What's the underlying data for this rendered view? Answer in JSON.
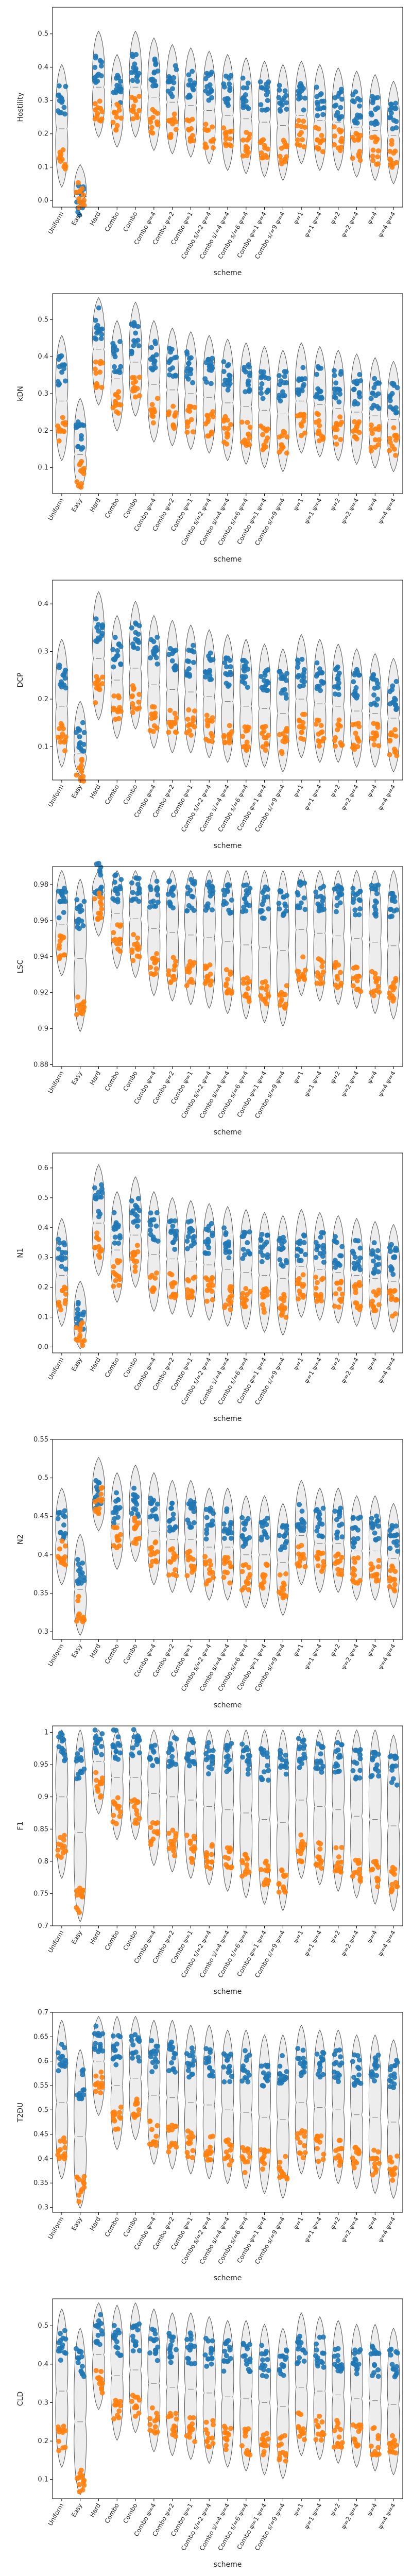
{
  "chart_data": {
    "type": "violin-strip",
    "xlabel": "scheme",
    "categories": [
      "Uniform",
      "Easy",
      "Hard",
      "Combo",
      "Combo",
      "Combo ψ=4",
      "Combo ψ=2",
      "Combo ψ=1",
      "Combo s/=2 ψ=4",
      "Combo s/=4 ψ=4",
      "Combo s/=6 ψ=4",
      "Combo ψ=1 ψ=4",
      "Combo s/=9 ψ=4",
      "ψ=1",
      "ψ=1 ψ=4",
      "ψ=2",
      "ψ=2 ψ=4",
      "ψ=4",
      "ψ=4 ψ=4"
    ],
    "series_colors": [
      "#1f77b4",
      "#ff7f0e"
    ],
    "grid": false,
    "panels": [
      {
        "ylabel": "Hostility",
        "ylim": [
          -0.02,
          0.58
        ],
        "yticks": [
          0.0,
          0.1,
          0.2,
          0.3,
          0.4,
          0.5
        ],
        "blue": [
          0.3,
          0.0,
          0.4,
          0.33,
          0.4,
          0.38,
          0.36,
          0.35,
          0.34,
          0.33,
          0.32,
          0.31,
          0.3,
          0.31,
          0.3,
          0.29,
          0.28,
          0.27,
          0.25
        ],
        "orange": [
          0.13,
          0.02,
          0.28,
          0.25,
          0.28,
          0.24,
          0.23,
          0.22,
          0.2,
          0.18,
          0.17,
          0.16,
          0.15,
          0.2,
          0.18,
          0.18,
          0.16,
          0.15,
          0.14
        ]
      },
      {
        "ylabel": "kDN",
        "ylim": [
          0.03,
          0.57
        ],
        "yticks": [
          0.1,
          0.2,
          0.3,
          0.4,
          0.5
        ],
        "blue": [
          0.36,
          0.19,
          0.49,
          0.4,
          0.45,
          0.4,
          0.38,
          0.37,
          0.36,
          0.35,
          0.34,
          0.33,
          0.32,
          0.34,
          0.33,
          0.32,
          0.31,
          0.3,
          0.29
        ],
        "orange": [
          0.2,
          0.08,
          0.35,
          0.28,
          0.32,
          0.25,
          0.24,
          0.23,
          0.22,
          0.2,
          0.19,
          0.18,
          0.17,
          0.22,
          0.21,
          0.2,
          0.19,
          0.18,
          0.17
        ]
      },
      {
        "ylabel": "DCP",
        "ylim": [
          0.03,
          0.45
        ],
        "yticks": [
          0.1,
          0.2,
          0.3,
          0.4
        ],
        "blue": [
          0.25,
          0.12,
          0.35,
          0.3,
          0.33,
          0.3,
          0.29,
          0.28,
          0.27,
          0.26,
          0.25,
          0.24,
          0.23,
          0.26,
          0.25,
          0.24,
          0.23,
          0.22,
          0.21
        ],
        "orange": [
          0.12,
          0.05,
          0.22,
          0.18,
          0.2,
          0.16,
          0.15,
          0.15,
          0.14,
          0.13,
          0.12,
          0.12,
          0.11,
          0.14,
          0.13,
          0.13,
          0.12,
          0.12,
          0.11
        ]
      },
      {
        "ylabel": "LSC",
        "ylim": [
          0.879,
          0.99
        ],
        "yticks": [
          0.88,
          0.9,
          0.92,
          0.94,
          0.96,
          0.98
        ],
        "blue": [
          0.97,
          0.963,
          0.983,
          0.978,
          0.977,
          0.976,
          0.975,
          0.974,
          0.973,
          0.972,
          0.971,
          0.97,
          0.969,
          0.975,
          0.974,
          0.973,
          0.972,
          0.971,
          0.97
        ],
        "orange": [
          0.946,
          0.915,
          0.968,
          0.95,
          0.945,
          0.935,
          0.932,
          0.93,
          0.928,
          0.925,
          0.922,
          0.92,
          0.918,
          0.935,
          0.932,
          0.93,
          0.928,
          0.925,
          0.922
        ]
      },
      {
        "ylabel": "N1",
        "ylim": [
          -0.02,
          0.65
        ],
        "yticks": [
          0.0,
          0.1,
          0.2,
          0.3,
          0.4,
          0.5,
          0.6
        ],
        "blue": [
          0.31,
          0.1,
          0.49,
          0.4,
          0.45,
          0.4,
          0.38,
          0.37,
          0.36,
          0.35,
          0.34,
          0.33,
          0.32,
          0.34,
          0.33,
          0.32,
          0.31,
          0.3,
          0.29
        ],
        "orange": [
          0.17,
          0.05,
          0.34,
          0.25,
          0.3,
          0.22,
          0.21,
          0.2,
          0.19,
          0.17,
          0.16,
          0.15,
          0.14,
          0.2,
          0.19,
          0.18,
          0.17,
          0.16,
          0.15
        ]
      },
      {
        "ylabel": "N2",
        "ylim": [
          0.29,
          0.55
        ],
        "yticks": [
          0.3,
          0.35,
          0.4,
          0.45,
          0.5,
          0.55
        ],
        "blue": [
          0.44,
          0.38,
          0.48,
          0.46,
          0.47,
          0.46,
          0.45,
          0.45,
          0.44,
          0.44,
          0.43,
          0.43,
          0.42,
          0.45,
          0.44,
          0.44,
          0.43,
          0.43,
          0.42
        ],
        "orange": [
          0.4,
          0.33,
          0.47,
          0.42,
          0.43,
          0.4,
          0.39,
          0.39,
          0.38,
          0.38,
          0.37,
          0.37,
          0.36,
          0.4,
          0.39,
          0.39,
          0.38,
          0.38,
          0.37
        ]
      },
      {
        "ylabel": "F1",
        "ylim": [
          0.7,
          1.01
        ],
        "yticks": [
          0.7,
          0.75,
          0.8,
          0.85,
          0.9,
          0.95,
          1.0
        ],
        "blue": [
          0.98,
          0.95,
          0.99,
          0.98,
          0.98,
          0.97,
          0.97,
          0.97,
          0.96,
          0.96,
          0.96,
          0.95,
          0.95,
          0.97,
          0.96,
          0.96,
          0.95,
          0.95,
          0.94
        ],
        "orange": [
          0.82,
          0.74,
          0.92,
          0.88,
          0.88,
          0.84,
          0.83,
          0.82,
          0.81,
          0.8,
          0.79,
          0.78,
          0.77,
          0.82,
          0.81,
          0.8,
          0.79,
          0.78,
          0.77
        ]
      },
      {
        "ylabel": "T2ĐU",
        "ylim": [
          0.29,
          0.7
        ],
        "yticks": [
          0.3,
          0.35,
          0.4,
          0.45,
          0.5,
          0.55,
          0.6,
          0.65,
          0.7
        ],
        "blue": [
          0.61,
          0.55,
          0.65,
          0.62,
          0.63,
          0.61,
          0.61,
          0.6,
          0.6,
          0.59,
          0.59,
          0.58,
          0.58,
          0.6,
          0.59,
          0.59,
          0.58,
          0.58,
          0.57
        ],
        "orange": [
          0.42,
          0.34,
          0.55,
          0.48,
          0.5,
          0.45,
          0.44,
          0.43,
          0.42,
          0.41,
          0.4,
          0.39,
          0.38,
          0.43,
          0.42,
          0.41,
          0.4,
          0.39,
          0.38
        ]
      },
      {
        "ylabel": "CLD",
        "ylim": [
          0.05,
          0.57
        ],
        "yticks": [
          0.1,
          0.2,
          0.3,
          0.4,
          0.5
        ],
        "blue": [
          0.45,
          0.4,
          0.49,
          0.46,
          0.47,
          0.45,
          0.44,
          0.44,
          0.43,
          0.42,
          0.42,
          0.41,
          0.4,
          0.44,
          0.43,
          0.42,
          0.41,
          0.41,
          0.4
        ],
        "orange": [
          0.21,
          0.1,
          0.36,
          0.28,
          0.3,
          0.25,
          0.24,
          0.23,
          0.22,
          0.21,
          0.2,
          0.19,
          0.18,
          0.24,
          0.23,
          0.22,
          0.21,
          0.2,
          0.19
        ]
      }
    ]
  }
}
